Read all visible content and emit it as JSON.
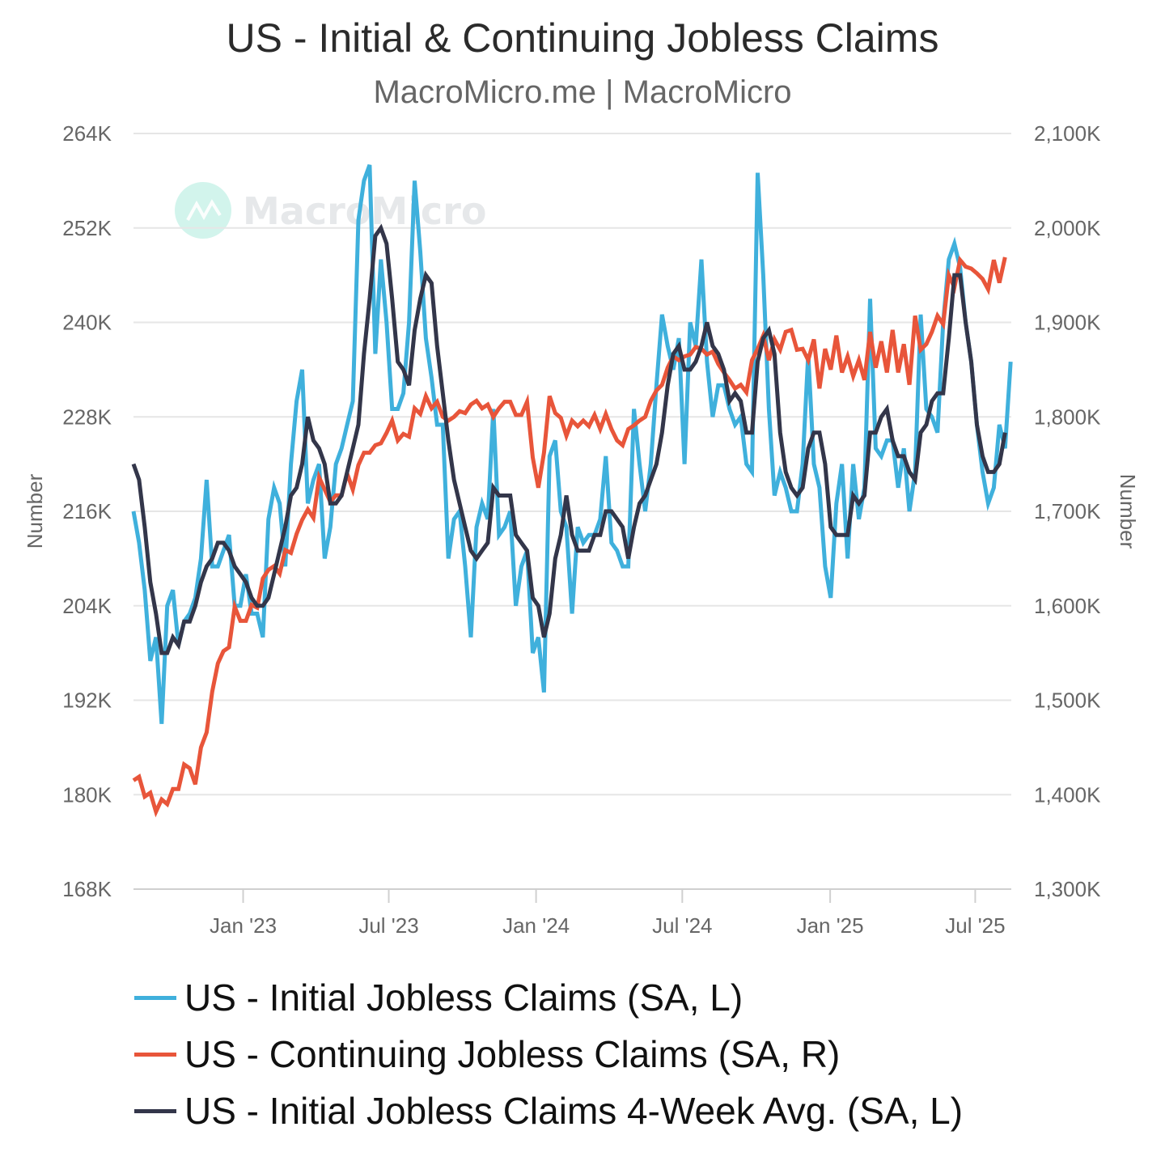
{
  "header": {
    "title": "US - Initial & Continuing Jobless Claims",
    "subtitle": "MacroMicro.me | MacroMicro"
  },
  "watermark": {
    "text": "MacroMicro",
    "color": "#7fe0c8"
  },
  "chart_data": {
    "type": "line",
    "title": "US - Initial & Continuing Jobless Claims",
    "subtitle": "MacroMicro.me | MacroMicro",
    "x_start": "2022-09-10",
    "x_interval": "weekly",
    "xlabel": "",
    "x_ticks": [
      {
        "label": "Jan '23",
        "week_index": 19.5
      },
      {
        "label": "Jul '23",
        "week_index": 45.4
      },
      {
        "label": "Jan '24",
        "week_index": 71.6
      },
      {
        "label": "Jul '24",
        "week_index": 97.6
      },
      {
        "label": "Jan '25",
        "week_index": 123.9
      },
      {
        "label": "Jul '25",
        "week_index": 149.7
      }
    ],
    "y_left": {
      "label": "Number",
      "range": [
        168,
        264
      ],
      "unit": "K",
      "ticks": [
        "264K",
        "252K",
        "240K",
        "228K",
        "216K",
        "204K",
        "192K",
        "180K",
        "168K"
      ],
      "tick_values": [
        264,
        252,
        240,
        228,
        216,
        204,
        192,
        180,
        168
      ]
    },
    "y_right": {
      "label": "Number",
      "range": [
        1300,
        2100
      ],
      "unit": "K",
      "ticks": [
        "2,100K",
        "2,000K",
        "1,900K",
        "1,800K",
        "1,700K",
        "1,600K",
        "1,500K",
        "1,400K",
        "1,300K"
      ],
      "tick_values": [
        2100,
        2000,
        1900,
        1800,
        1700,
        1600,
        1500,
        1400,
        1300
      ]
    },
    "grid": true,
    "legend_position": "bottom",
    "series": [
      {
        "name": "US - Initial Jobless Claims (SA, L)",
        "axis": "left",
        "color": "#3fb0dc",
        "values": [
          216,
          212,
          206,
          197,
          200,
          189,
          204,
          206,
          199,
          202,
          203,
          205,
          210,
          220,
          209,
          209,
          211,
          213,
          204,
          204,
          208,
          203,
          203,
          200,
          215,
          219,
          217,
          209,
          222,
          230,
          234,
          217,
          220,
          222,
          210,
          214,
          222,
          224,
          227,
          230,
          253,
          258,
          260,
          236,
          248,
          240,
          229,
          229,
          231,
          240,
          258,
          249,
          238,
          233,
          227,
          227,
          210,
          215,
          216,
          209,
          200,
          214,
          217,
          215,
          229,
          213,
          214,
          216,
          204,
          209,
          211,
          198,
          200,
          193,
          223,
          225,
          216,
          214,
          203,
          214,
          212,
          213,
          213,
          215,
          223,
          212,
          211,
          209,
          209,
          229,
          222,
          216,
          222,
          232,
          241,
          237,
          234,
          238,
          222,
          240,
          237,
          248,
          235,
          228,
          232,
          232,
          229,
          227,
          228,
          222,
          221,
          259,
          246,
          229,
          218,
          221,
          219,
          216,
          216,
          222,
          236,
          222,
          219,
          209,
          205,
          217,
          222,
          210,
          222,
          215,
          219,
          243,
          224,
          223,
          225,
          225,
          219,
          224,
          216,
          221,
          241,
          229,
          228,
          226,
          240,
          248,
          250,
          247,
          240,
          235,
          227,
          221,
          217,
          219,
          227,
          224,
          235
        ]
      },
      {
        "name": "US - Continuing Jobless Claims (SA, R)",
        "axis": "right",
        "color": "#e8553a",
        "values": [
          1415,
          1419,
          1398,
          1402,
          1382,
          1395,
          1390,
          1406,
          1406,
          1432,
          1428,
          1411,
          1450,
          1466,
          1509,
          1539,
          1552,
          1556,
          1599,
          1584,
          1584,
          1601,
          1598,
          1629,
          1638,
          1642,
          1634,
          1659,
          1656,
          1676,
          1691,
          1702,
          1693,
          1736,
          1723,
          1710,
          1717,
          1717,
          1740,
          1723,
          1749,
          1762,
          1762,
          1770,
          1772,
          1783,
          1796,
          1775,
          1782,
          1779,
          1809,
          1803,
          1822,
          1809,
          1816,
          1800,
          1796,
          1800,
          1806,
          1804,
          1813,
          1817,
          1809,
          1813,
          1800,
          1809,
          1816,
          1816,
          1802,
          1802,
          1816,
          1757,
          1725,
          1762,
          1822,
          1804,
          1799,
          1780,
          1796,
          1790,
          1796,
          1790,
          1802,
          1787,
          1803,
          1787,
          1775,
          1770,
          1787,
          1791,
          1796,
          1800,
          1817,
          1828,
          1834,
          1852,
          1864,
          1860,
          1864,
          1866,
          1874,
          1872,
          1866,
          1869,
          1856,
          1847,
          1839,
          1830,
          1834,
          1826,
          1860,
          1872,
          1886,
          1860,
          1882,
          1871,
          1890,
          1892,
          1871,
          1872,
          1860,
          1882,
          1830,
          1872,
          1850,
          1886,
          1847,
          1864,
          1843,
          1860,
          1839,
          1890,
          1852,
          1880,
          1847,
          1892,
          1847,
          1877,
          1834,
          1907,
          1871,
          1877,
          1890,
          1907,
          1898,
          1950,
          1937,
          1966,
          1959,
          1957,
          1952,
          1946,
          1935,
          1966,
          1942,
          1969
        ]
      },
      {
        "name": "US - Initial Jobless Claims 4-Week Avg. (SA, L)",
        "axis": "left",
        "color": "#33364a",
        "values": [
          222,
          220,
          214,
          207,
          203,
          198,
          198,
          200,
          199,
          202,
          202,
          204,
          207,
          209,
          210,
          212,
          212,
          211,
          209,
          208,
          207,
          205,
          204,
          204,
          205,
          208,
          211,
          214,
          218,
          219,
          222,
          228,
          225,
          224,
          222,
          217,
          217,
          218,
          221,
          224,
          227,
          236,
          243,
          251,
          252,
          250,
          243,
          235,
          234,
          232,
          239,
          243,
          246,
          245,
          237,
          231,
          225,
          220,
          217,
          214,
          211,
          210,
          211,
          212,
          219,
          218,
          218,
          218,
          213,
          212,
          211,
          205,
          204,
          200,
          203,
          210,
          213,
          218,
          213,
          211,
          211,
          211,
          213,
          213,
          216,
          216,
          215,
          214,
          210,
          214,
          217,
          218,
          220,
          222,
          226,
          232,
          236,
          237,
          234,
          234,
          235,
          237,
          240,
          237,
          236,
          234,
          230,
          231,
          230,
          226,
          226,
          235,
          238,
          239,
          236,
          226,
          221,
          219,
          218,
          219,
          224,
          226,
          226,
          222,
          214,
          213,
          213,
          213,
          218,
          217,
          218,
          226,
          226,
          228,
          229,
          225,
          223,
          223,
          221,
          220,
          226,
          227,
          230,
          231,
          231,
          238,
          246,
          246,
          240,
          235,
          227,
          223,
          221,
          221,
          222,
          226
        ]
      }
    ]
  }
}
